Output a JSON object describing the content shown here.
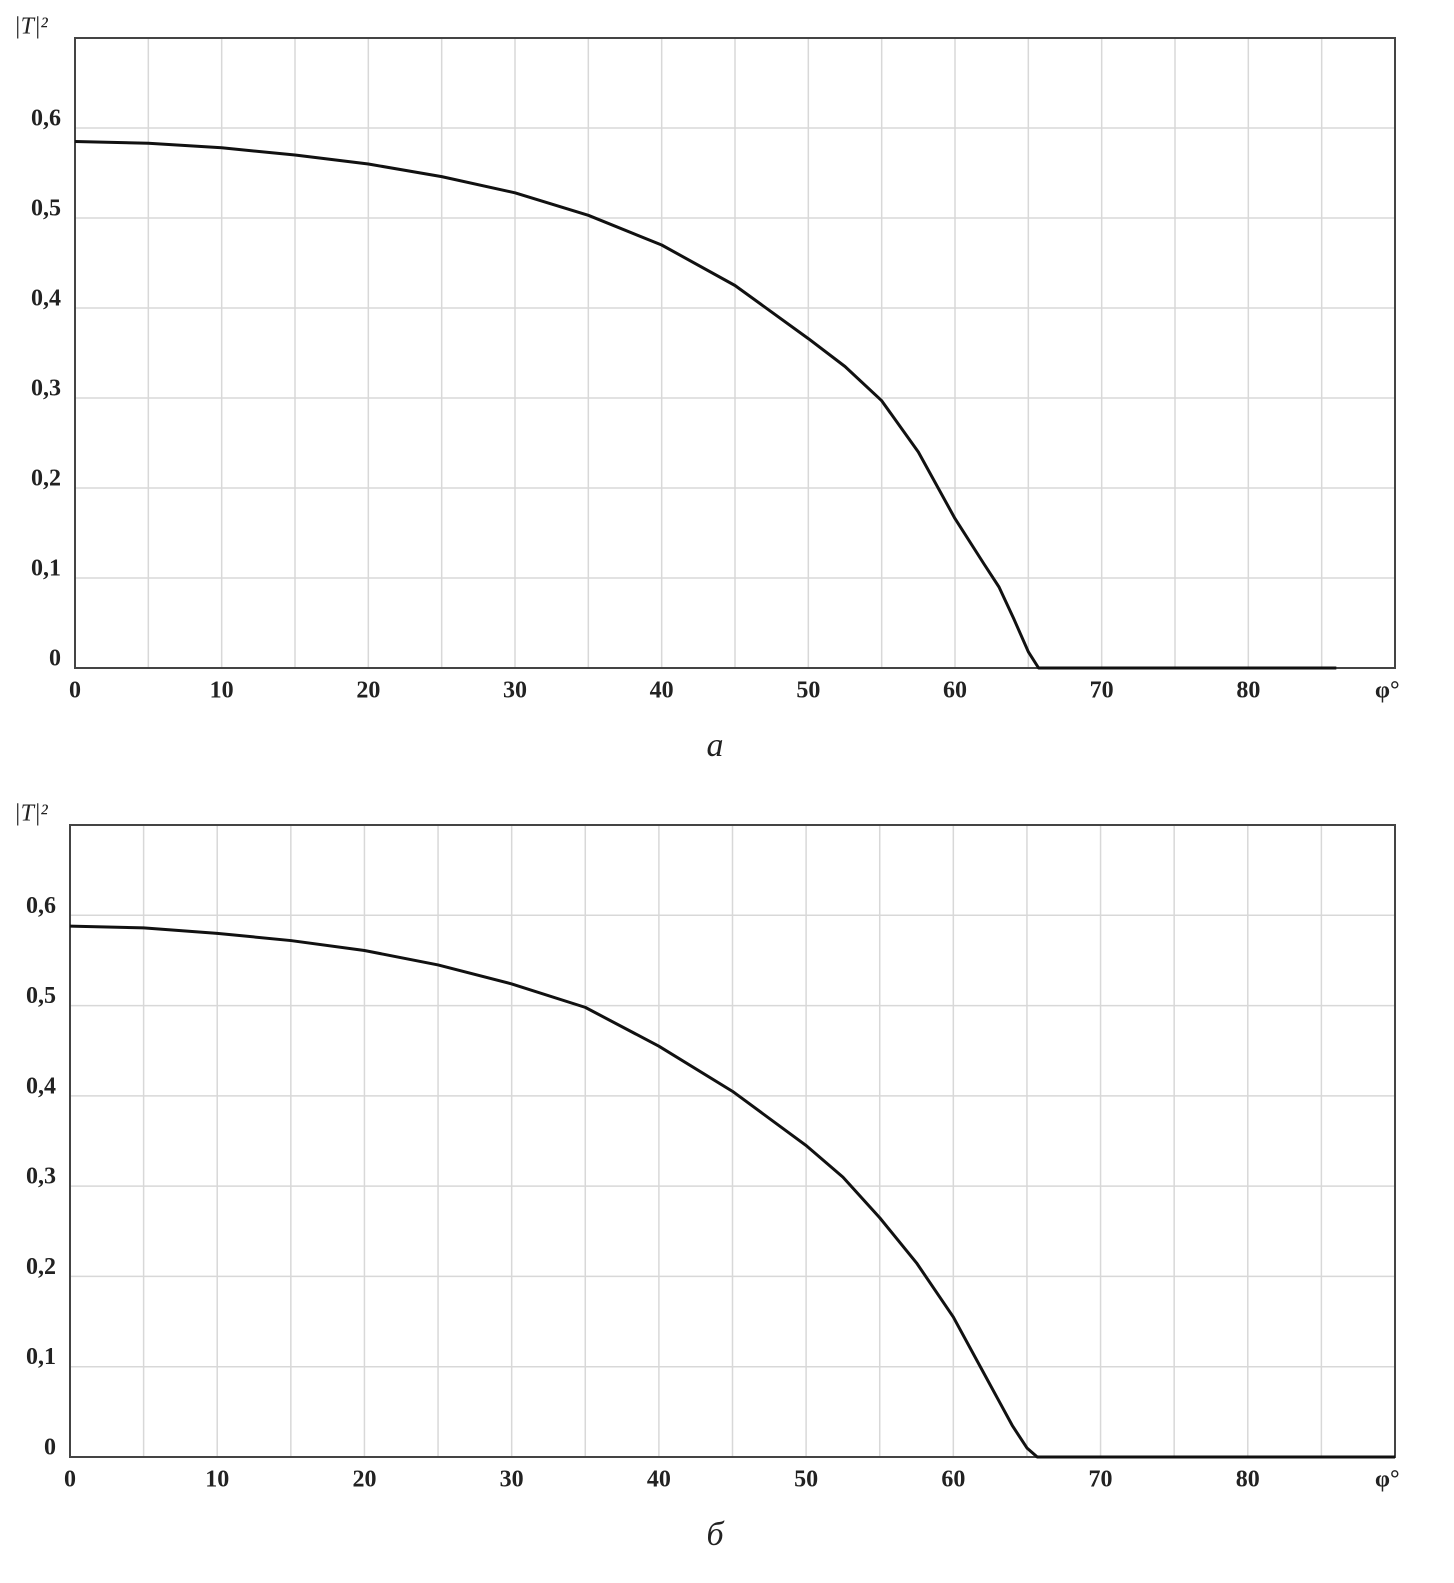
{
  "chart_data": [
    {
      "type": "line",
      "caption": "а",
      "y_label": "|T|²",
      "x_label": "φ°",
      "x": [
        0,
        5,
        10,
        15,
        20,
        25,
        30,
        35,
        40,
        45,
        50,
        52.5,
        55,
        57.5,
        60,
        62,
        63,
        64,
        65,
        65.7,
        70,
        80,
        86
      ],
      "series": [
        {
          "color": "#111111",
          "values": [
            0.585,
            0.583,
            0.578,
            0.57,
            0.56,
            0.546,
            0.528,
            0.503,
            0.47,
            0.425,
            0.366,
            0.335,
            0.297,
            0.24,
            0.166,
            0.115,
            0.09,
            0.055,
            0.018,
            0,
            0,
            0,
            0
          ]
        }
      ],
      "xlim": [
        0,
        90
      ],
      "ylim": [
        0,
        0.7
      ],
      "xticks": [
        0,
        10,
        20,
        30,
        40,
        50,
        60,
        70,
        80
      ],
      "xminorticks": [
        5,
        15,
        25,
        35,
        45,
        55,
        65,
        75,
        85
      ],
      "yticks": [
        0,
        {
          "value": 0.1,
          "label": "0,1"
        },
        {
          "value": 0.2,
          "label": "0,2"
        },
        {
          "value": 0.3,
          "label": "0,3"
        },
        {
          "value": 0.4,
          "label": "0,4"
        },
        {
          "value": 0.5,
          "label": "0,5"
        },
        {
          "value": 0.6,
          "label": "0,6"
        }
      ],
      "grid": true
    },
    {
      "type": "line",
      "caption": "б",
      "y_label": "|T|²",
      "x_label": "φ°",
      "x": [
        0,
        5,
        10,
        15,
        20,
        25,
        30,
        35,
        40,
        45,
        50,
        52.5,
        55,
        57.5,
        60,
        62,
        63,
        64,
        65,
        65.7,
        70,
        80,
        90
      ],
      "series": [
        {
          "color": "#111111",
          "values": [
            0.588,
            0.586,
            0.58,
            0.572,
            0.561,
            0.545,
            0.524,
            0.498,
            0.455,
            0.405,
            0.345,
            0.31,
            0.265,
            0.215,
            0.155,
            0.095,
            0.065,
            0.035,
            0.01,
            0,
            0,
            0,
            0
          ]
        }
      ],
      "xlim": [
        0,
        90
      ],
      "ylim": [
        0,
        0.7
      ],
      "xticks": [
        0,
        10,
        20,
        30,
        40,
        50,
        60,
        70,
        80
      ],
      "xminorticks": [
        5,
        15,
        25,
        35,
        45,
        55,
        65,
        75,
        85
      ],
      "yticks": [
        0,
        {
          "value": 0.1,
          "label": "0,1"
        },
        {
          "value": 0.2,
          "label": "0,2"
        },
        {
          "value": 0.3,
          "label": "0,3"
        },
        {
          "value": 0.4,
          "label": "0,4"
        },
        {
          "value": 0.5,
          "label": "0,5"
        },
        {
          "value": 0.6,
          "label": "0,6"
        }
      ],
      "grid": true
    }
  ]
}
